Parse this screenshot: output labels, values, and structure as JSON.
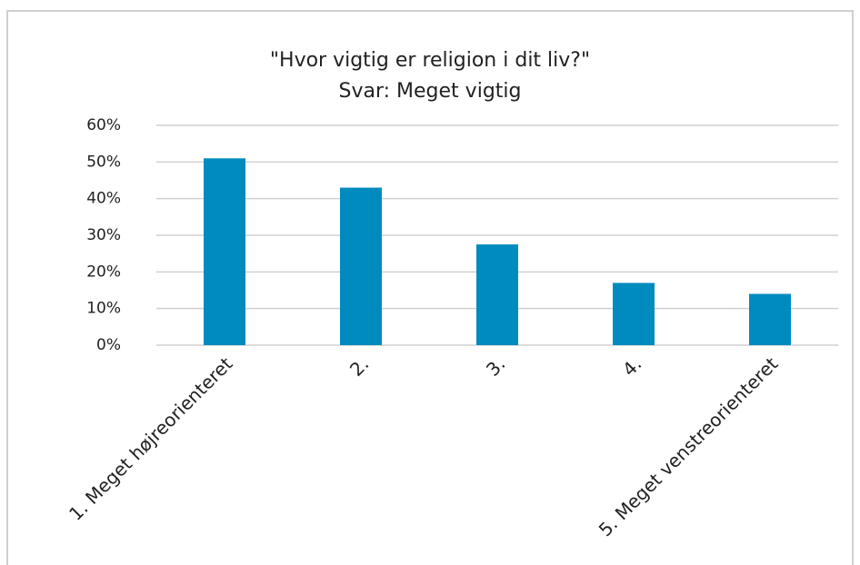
{
  "chart_data": {
    "type": "bar",
    "title": "\"Hvor vigtig er religion i dit liv?\"",
    "subtitle": "Svar: Meget vigtig",
    "categories": [
      "1. Meget højreorienteret",
      "2.",
      "3.",
      "4.",
      "5. Meget venstreorienteret"
    ],
    "values": [
      51,
      43,
      27.5,
      17,
      14
    ],
    "color": "#008bbf",
    "ylim": [
      0,
      60
    ],
    "yticks": [
      {
        "value": 0,
        "label": "0%"
      },
      {
        "value": 10,
        "label": "10%"
      },
      {
        "value": 20,
        "label": "20%"
      },
      {
        "value": 30,
        "label": "30%"
      },
      {
        "value": 40,
        "label": "40%"
      },
      {
        "value": 50,
        "label": "50%"
      },
      {
        "value": 60,
        "label": "60%"
      }
    ],
    "grid": true
  }
}
